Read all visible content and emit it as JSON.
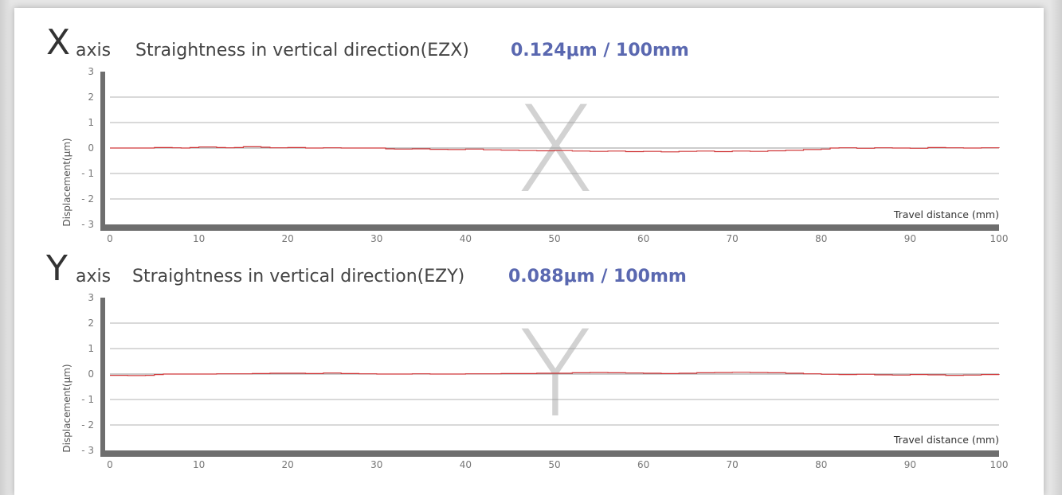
{
  "colors": {
    "line": "#d0383a",
    "grid": "#9a9a9a",
    "axis_bar": "#6e6e6e",
    "value_text": "#5a68b0",
    "watermark": "#d2d2d2"
  },
  "chart_data": [
    {
      "type": "line",
      "letter": "X",
      "axis_word": "axis",
      "title": "Straightness in vertical direction(EZX)",
      "value_label": "0.124μm / 100mm",
      "watermark": "X",
      "xlabel": "Travel distance (mm)",
      "ylabel": "Displacement(μm)",
      "xlim": [
        0,
        100
      ],
      "ylim": [
        -3,
        3
      ],
      "x_ticks": [
        "0",
        "10",
        "20",
        "30",
        "40",
        "50",
        "60",
        "70",
        "80",
        "90",
        "100"
      ],
      "y_ticks": [
        "3",
        "2",
        "1",
        "0",
        "- 1",
        "- 2",
        "- 3"
      ],
      "series": [
        {
          "x": [
            0,
            4,
            5,
            7,
            8,
            9,
            10,
            11,
            12,
            13,
            14,
            15,
            16,
            17,
            18,
            20,
            22,
            24,
            26,
            28,
            30,
            31,
            32,
            34,
            36,
            38,
            40,
            42,
            44,
            46,
            48,
            50,
            52,
            54,
            56,
            58,
            60,
            62,
            64,
            66,
            68,
            70,
            72,
            74,
            76,
            78,
            80,
            81,
            82,
            84,
            86,
            88,
            90,
            92,
            94,
            96,
            98,
            100
          ],
          "y": [
            0,
            0,
            0.02,
            0.01,
            0,
            0.02,
            0.04,
            0.04,
            0.02,
            0.01,
            0.02,
            0.05,
            0.05,
            0.03,
            0.01,
            0.02,
            0,
            0.01,
            0,
            0,
            0,
            -0.03,
            -0.04,
            -0.03,
            -0.05,
            -0.06,
            -0.04,
            -0.07,
            -0.08,
            -0.1,
            -0.11,
            -0.1,
            -0.12,
            -0.13,
            -0.12,
            -0.14,
            -0.13,
            -0.15,
            -0.13,
            -0.12,
            -0.14,
            -0.12,
            -0.13,
            -0.11,
            -0.09,
            -0.06,
            -0.04,
            0,
            0.01,
            -0.01,
            0.01,
            0,
            -0.01,
            0.02,
            0.01,
            0,
            0.01,
            0
          ]
        }
      ]
    },
    {
      "type": "line",
      "letter": "Y",
      "axis_word": "axis",
      "title": "Straightness in vertical direction(EZY)",
      "value_label": "0.088μm / 100mm",
      "watermark": "Y",
      "xlabel": "Travel distance (mm)",
      "ylabel": "Displacement(μm)",
      "xlim": [
        0,
        100
      ],
      "ylim": [
        -3,
        3
      ],
      "x_ticks": [
        "0",
        "10",
        "20",
        "30",
        "40",
        "50",
        "60",
        "70",
        "80",
        "90",
        "100"
      ],
      "y_ticks": [
        "3",
        "2",
        "1",
        "0",
        "- 1",
        "- 2",
        "- 3"
      ],
      "series": [
        {
          "x": [
            0,
            2,
            4,
            5,
            6,
            8,
            10,
            12,
            14,
            16,
            18,
            20,
            22,
            24,
            26,
            28,
            30,
            32,
            34,
            36,
            38,
            40,
            42,
            44,
            46,
            48,
            50,
            52,
            54,
            56,
            58,
            60,
            62,
            64,
            66,
            68,
            70,
            72,
            74,
            76,
            78,
            80,
            82,
            84,
            86,
            88,
            90,
            92,
            94,
            96,
            98,
            100
          ],
          "y": [
            -0.05,
            -0.06,
            -0.05,
            -0.02,
            0,
            0,
            0,
            0.01,
            0.01,
            0.02,
            0.03,
            0.03,
            0.02,
            0.04,
            0.02,
            0.01,
            0,
            0,
            0.01,
            0,
            0,
            0.01,
            0.01,
            0.02,
            0.02,
            0.03,
            0.03,
            0.05,
            0.06,
            0.05,
            0.04,
            0.03,
            0.02,
            0.03,
            0.05,
            0.06,
            0.07,
            0.06,
            0.05,
            0.03,
            0.01,
            -0.01,
            -0.02,
            -0.01,
            -0.03,
            -0.04,
            -0.02,
            -0.03,
            -0.05,
            -0.04,
            -0.02,
            -0.03
          ]
        }
      ]
    }
  ]
}
